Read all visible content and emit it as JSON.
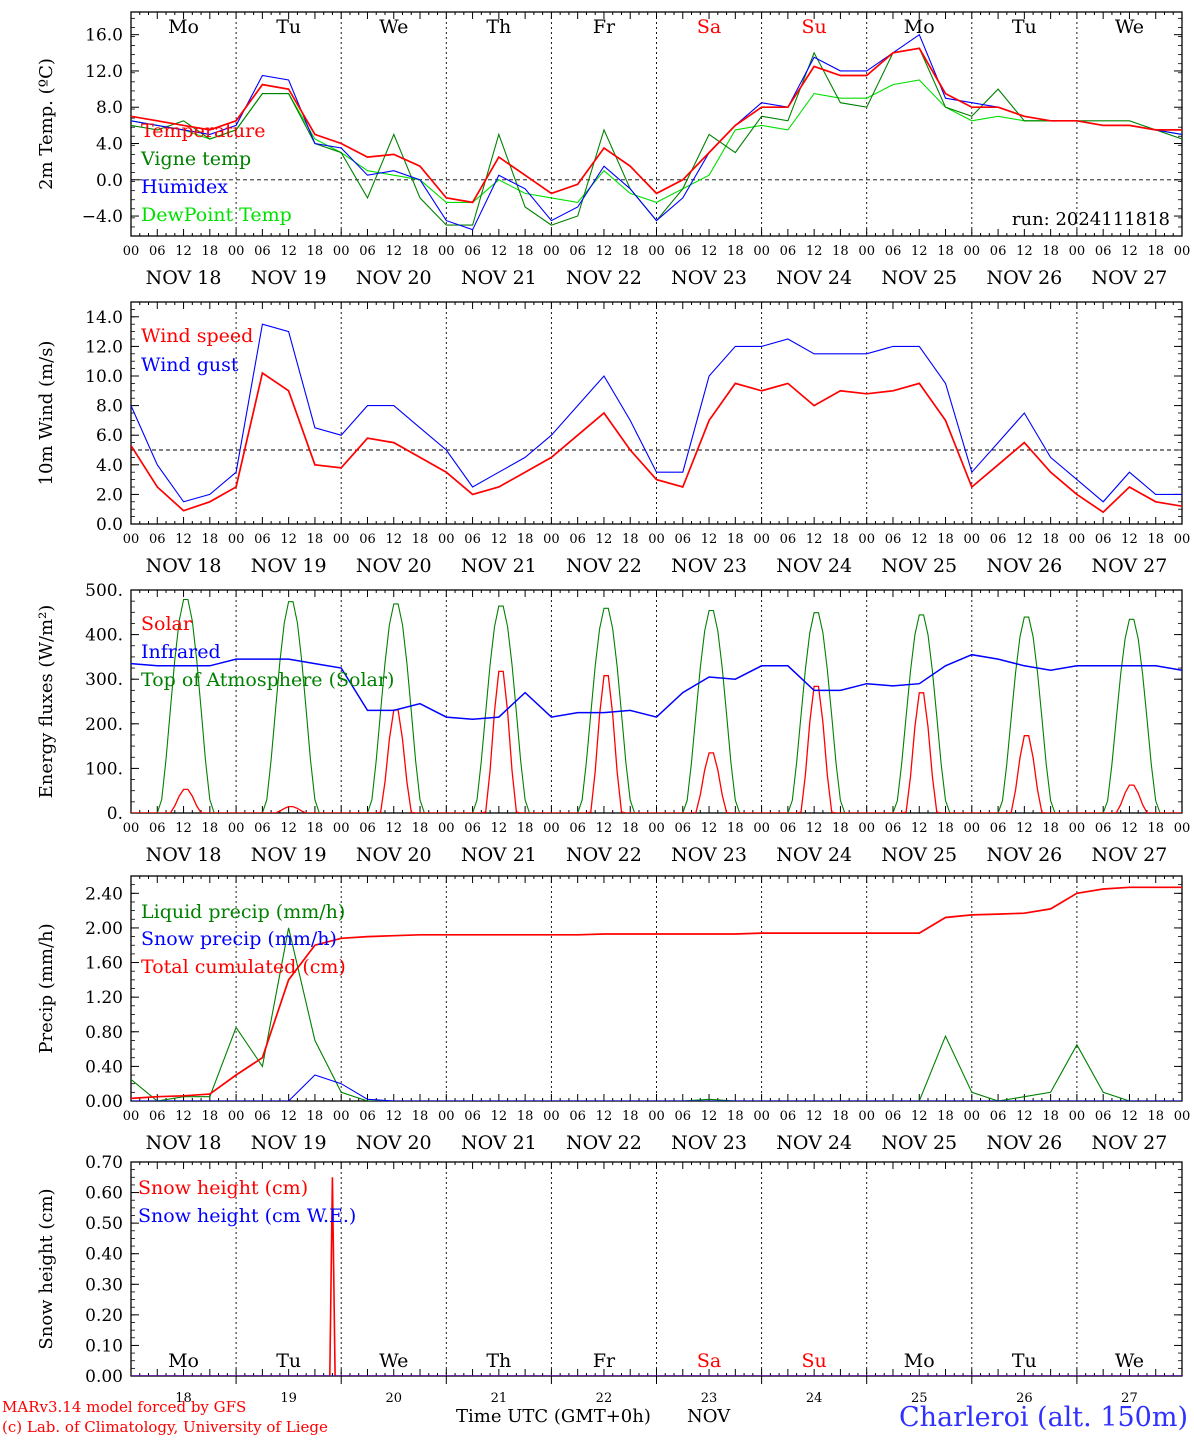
{
  "time_axis": {
    "days": [
      "NOV 18",
      "NOV 19",
      "NOV 20",
      "NOV 21",
      "NOV 22",
      "NOV 23",
      "NOV 24",
      "NOV 25",
      "NOV 26",
      "NOV 27"
    ],
    "weekdays": [
      "Mo",
      "Tu",
      "We",
      "Th",
      "Fr",
      "Sa",
      "Su",
      "Mo",
      "Tu",
      "We"
    ],
    "weekend_flags": [
      false,
      false,
      false,
      false,
      false,
      true,
      true,
      false,
      false,
      false
    ],
    "hour_ticks": [
      "00",
      "06",
      "12",
      "18"
    ],
    "final_tick": "00",
    "day_numbers": [
      "18",
      "19",
      "20",
      "21",
      "22",
      "23",
      "24",
      "25",
      "26",
      "27"
    ],
    "month": "NOV",
    "xlabel": "Time UTC (GMT+0h)"
  },
  "colors": {
    "red": "#ff0000",
    "green": "#008000",
    "blue": "#0000ff",
    "lightgreen": "#00e000",
    "dark": "#000000"
  },
  "footer": {
    "model": "MARv3.14 model forced by GFS",
    "copyright": "(c) Lab. of Climatology, University of Liege",
    "station": "Charleroi (alt. 150m)"
  },
  "chart_data": [
    {
      "type": "line",
      "ylabel": "2m Temp. (ºC)",
      "ylim": [
        -6.2,
        18.5
      ],
      "yticks": [
        -4,
        0,
        4,
        8,
        12,
        16
      ],
      "ytick_labels": [
        "−4.0",
        "0.0",
        "4.0",
        "8.0",
        "12.0",
        "16.0"
      ],
      "reference_line": 0,
      "annotation": "run: 2024111818",
      "hours": [
        0,
        6,
        12,
        18,
        24,
        30,
        36,
        42,
        48,
        54,
        60,
        66,
        72,
        78,
        84,
        90,
        96,
        102,
        108,
        114,
        120,
        126,
        132,
        138,
        144,
        150,
        156,
        162,
        168,
        174,
        180,
        186,
        192,
        198,
        204,
        210,
        216,
        222,
        228,
        234,
        240
      ],
      "series": [
        {
          "name": "Temperature",
          "color": "red",
          "values": [
            7.0,
            6.5,
            6.0,
            5.5,
            6.5,
            10.5,
            10.0,
            5.0,
            4.0,
            2.5,
            2.8,
            1.5,
            -2.0,
            -2.5,
            2.5,
            0.5,
            -1.5,
            -0.5,
            3.5,
            1.5,
            -1.5,
            0.0,
            3.0,
            6.0,
            8.0,
            8.0,
            12.5,
            11.5,
            11.5,
            14.0,
            14.5,
            9.5,
            8.0,
            8.0,
            7.0,
            6.5,
            6.5,
            6.0,
            6.0,
            5.5,
            5.5
          ]
        },
        {
          "name": "Vigne temp",
          "color": "green",
          "values": [
            6.0,
            5.5,
            6.5,
            4.5,
            5.5,
            9.5,
            9.5,
            4.0,
            3.0,
            -2.0,
            5.0,
            -2.0,
            -5.0,
            -5.0,
            5.0,
            -3.0,
            -5.0,
            -4.0,
            5.5,
            -1.0,
            -4.5,
            -1.0,
            5.0,
            3.0,
            7.0,
            6.5,
            14.0,
            8.5,
            8.0,
            14.0,
            14.5,
            8.0,
            7.0,
            10.0,
            6.5,
            6.5,
            6.5,
            6.5,
            6.5,
            5.5,
            4.5
          ]
        },
        {
          "name": "Humidex",
          "color": "blue",
          "values": [
            6.5,
            6.0,
            5.5,
            5.0,
            6.0,
            11.5,
            11.0,
            4.0,
            3.5,
            0.5,
            1.0,
            0.0,
            -4.5,
            -5.5,
            0.5,
            -1.0,
            -4.5,
            -3.0,
            1.5,
            -1.0,
            -4.5,
            -2.0,
            3.0,
            6.0,
            8.5,
            8.0,
            13.5,
            12.0,
            12.0,
            14.0,
            16.0,
            9.0,
            8.5,
            8.0,
            7.0,
            6.5,
            6.5,
            6.0,
            6.0,
            5.5,
            5.0
          ]
        },
        {
          "name": "DewPoint Temp",
          "color": "lightgreen",
          "values": [
            6.5,
            6.0,
            5.5,
            4.5,
            5.5,
            9.5,
            9.5,
            4.5,
            3.0,
            1.0,
            0.5,
            0.0,
            -2.5,
            -2.5,
            0.0,
            -1.5,
            -2.0,
            -2.5,
            1.0,
            -1.5,
            -2.5,
            -1.0,
            0.5,
            5.5,
            6.0,
            5.5,
            9.5,
            9.0,
            9.0,
            10.5,
            11.0,
            8.0,
            6.5,
            7.0,
            6.5,
            6.5,
            6.5,
            6.0,
            6.0,
            5.5,
            5.0
          ]
        }
      ]
    },
    {
      "type": "line",
      "ylabel": "10m Wind (m/s)",
      "ylim": [
        0,
        15.0
      ],
      "yticks": [
        0,
        2,
        4,
        6,
        8,
        10,
        12,
        14
      ],
      "ytick_labels": [
        "0.0",
        "2.0",
        "4.0",
        "6.0",
        "8.0",
        "10.0",
        "12.0",
        "14.0"
      ],
      "reference_line": 5,
      "hours": [
        0,
        6,
        12,
        18,
        24,
        30,
        36,
        42,
        48,
        54,
        60,
        66,
        72,
        78,
        84,
        90,
        96,
        102,
        108,
        114,
        120,
        126,
        132,
        138,
        144,
        150,
        156,
        162,
        168,
        174,
        180,
        186,
        192,
        198,
        204,
        210,
        216,
        222,
        228,
        234,
        240
      ],
      "series": [
        {
          "name": "Wind speed",
          "color": "red",
          "values": [
            5.3,
            2.5,
            0.9,
            1.5,
            2.5,
            10.2,
            9.0,
            4.0,
            3.8,
            5.8,
            5.5,
            4.5,
            3.5,
            2.0,
            2.5,
            3.5,
            4.5,
            6.0,
            7.5,
            5.0,
            3.0,
            2.5,
            7.0,
            9.5,
            9.0,
            9.5,
            8.0,
            9.0,
            8.8,
            9.0,
            9.5,
            7.0,
            2.5,
            4.0,
            5.5,
            3.5,
            2.0,
            0.8,
            2.5,
            1.5,
            1.2
          ]
        },
        {
          "name": "Wind gust",
          "color": "blue",
          "values": [
            8.0,
            4.0,
            1.5,
            2.0,
            3.5,
            13.5,
            13.0,
            6.5,
            6.0,
            8.0,
            8.0,
            6.5,
            5.0,
            2.5,
            3.5,
            4.5,
            6.0,
            8.0,
            10.0,
            7.0,
            3.5,
            3.5,
            10.0,
            12.0,
            12.0,
            12.5,
            11.5,
            11.5,
            11.5,
            12.0,
            12.0,
            9.5,
            3.5,
            5.5,
            7.5,
            4.5,
            3.0,
            1.5,
            3.5,
            2.0,
            2.0
          ]
        }
      ]
    },
    {
      "type": "line",
      "ylabel": "Energy fluxes (W/m²)",
      "ylim": [
        0,
        500
      ],
      "yticks": [
        0,
        100,
        200,
        300,
        400,
        500
      ],
      "ytick_labels": [
        "0.",
        "100.",
        "200.",
        "300.",
        "400.",
        "500."
      ],
      "hours": [
        0,
        6,
        12,
        18,
        24,
        30,
        36,
        42,
        48,
        54,
        60,
        66,
        72,
        78,
        84,
        90,
        96,
        102,
        108,
        114,
        120,
        126,
        132,
        138,
        144,
        150,
        156,
        162,
        168,
        174,
        180,
        186,
        192,
        198,
        204,
        210,
        216,
        222,
        228,
        234,
        240
      ],
      "solar_peaks": [
        55,
        15,
        240,
        330,
        320,
        140,
        295,
        280,
        180,
        65
      ],
      "toa_peaks": [
        485,
        480,
        475,
        470,
        465,
        460,
        455,
        450,
        445,
        440
      ],
      "series": [
        {
          "name": "Solar",
          "color": "red"
        },
        {
          "name": "Infrared",
          "color": "blue",
          "values": [
            335,
            330,
            330,
            330,
            345,
            345,
            345,
            335,
            325,
            230,
            230,
            245,
            215,
            210,
            215,
            270,
            215,
            225,
            225,
            230,
            215,
            270,
            305,
            300,
            330,
            330,
            275,
            275,
            290,
            285,
            290,
            330,
            355,
            345,
            330,
            320,
            330,
            330,
            330,
            330,
            320
          ]
        },
        {
          "name": "Top of Atmosphere (Solar)",
          "color": "green"
        }
      ]
    },
    {
      "type": "line",
      "ylabel": "Precip (mm/h)",
      "ylim": [
        0,
        2.6
      ],
      "yticks": [
        0,
        0.4,
        0.8,
        1.2,
        1.6,
        2.0,
        2.4
      ],
      "ytick_labels": [
        "0.00",
        "0.40",
        "0.80",
        "1.20",
        "1.60",
        "2.00",
        "2.40"
      ],
      "hours": [
        0,
        6,
        12,
        18,
        24,
        30,
        36,
        42,
        48,
        54,
        60,
        66,
        72,
        78,
        84,
        90,
        96,
        102,
        108,
        114,
        120,
        126,
        132,
        138,
        144,
        150,
        156,
        162,
        168,
        174,
        180,
        186,
        192,
        198,
        204,
        210,
        216,
        222,
        228,
        234,
        240
      ],
      "series": [
        {
          "name": "Liquid precip (mm/h)",
          "color": "green",
          "values": [
            0.25,
            0.0,
            0.05,
            0.05,
            0.85,
            0.4,
            2.0,
            0.7,
            0.1,
            0.0,
            0.0,
            0.0,
            0.0,
            0.0,
            0.0,
            0.0,
            0.0,
            0.0,
            0.0,
            0.0,
            0.0,
            0.0,
            0.02,
            0.0,
            0.0,
            0.0,
            0.0,
            0.0,
            0.0,
            0.0,
            0.0,
            0.75,
            0.1,
            0.0,
            0.05,
            0.1,
            0.65,
            0.1,
            0.0,
            0.0,
            0.0
          ]
        },
        {
          "name": "Snow precip (mm/h)",
          "color": "blue",
          "values": [
            0,
            0,
            0,
            0,
            0,
            0,
            0,
            0.3,
            0.2,
            0.02,
            0,
            0,
            0,
            0,
            0,
            0,
            0,
            0,
            0,
            0,
            0,
            0,
            0,
            0,
            0,
            0,
            0,
            0,
            0,
            0,
            0,
            0,
            0,
            0,
            0,
            0,
            0,
            0,
            0,
            0,
            0
          ]
        },
        {
          "name": "Total cumulated (cm)",
          "color": "red",
          "values": [
            0.03,
            0.05,
            0.06,
            0.08,
            0.3,
            0.5,
            1.4,
            1.8,
            1.88,
            1.9,
            1.91,
            1.92,
            1.92,
            1.92,
            1.92,
            1.92,
            1.92,
            1.92,
            1.93,
            1.93,
            1.93,
            1.93,
            1.93,
            1.93,
            1.94,
            1.94,
            1.94,
            1.94,
            1.94,
            1.94,
            1.94,
            2.12,
            2.15,
            2.16,
            2.17,
            2.22,
            2.4,
            2.45,
            2.47,
            2.47,
            2.47
          ]
        }
      ]
    },
    {
      "type": "line",
      "ylabel": "Snow height (cm)",
      "ylim": [
        0,
        0.7
      ],
      "yticks": [
        0,
        0.1,
        0.2,
        0.3,
        0.4,
        0.5,
        0.6,
        0.7
      ],
      "ytick_labels": [
        "0.00",
        "0.10",
        "0.20",
        "0.30",
        "0.40",
        "0.50",
        "0.60",
        "0.70"
      ],
      "series": [
        {
          "name": "Snow height (cm)",
          "color": "red",
          "spike_hour": 46,
          "spike_value": 0.65
        },
        {
          "name": "Snow height (cm W.E.)",
          "color": "blue"
        }
      ]
    }
  ]
}
